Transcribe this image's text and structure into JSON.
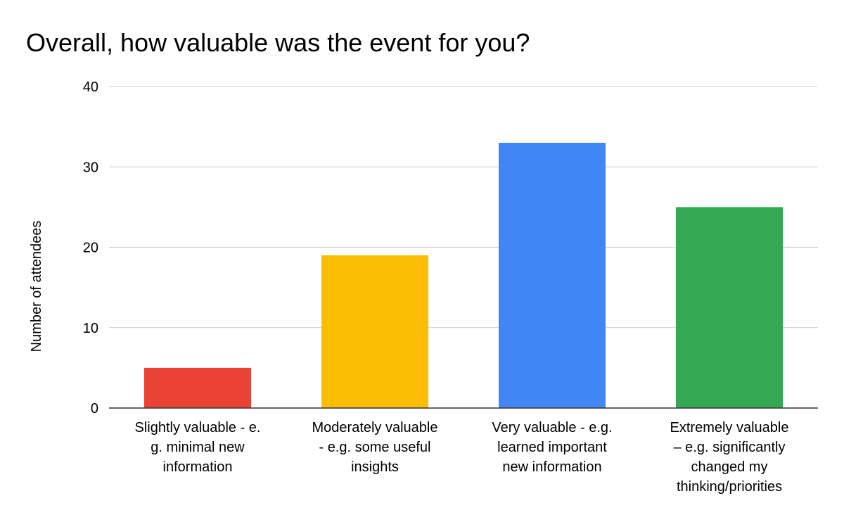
{
  "chart_data": {
    "type": "bar",
    "title": "Overall, how valuable was the event for you?",
    "ylabel": "Number of attendees",
    "xlabel": "",
    "ylim": [
      0,
      40
    ],
    "yticks": [
      0,
      10,
      20,
      30,
      40
    ],
    "grid": true,
    "categories": [
      [
        "Slightly valuable - e.",
        "g. minimal new",
        "information"
      ],
      [
        "Moderately valuable",
        "- e.g. some useful",
        "insights"
      ],
      [
        "Very valuable - e.g.",
        "learned important",
        "new information"
      ],
      [
        "Extremely valuable",
        "– e.g. significantly",
        "changed my",
        "thinking/priorities"
      ]
    ],
    "values": [
      5,
      19,
      33,
      25
    ],
    "colors": [
      "#ea4335",
      "#fbbc04",
      "#4285f4",
      "#34a853"
    ]
  }
}
